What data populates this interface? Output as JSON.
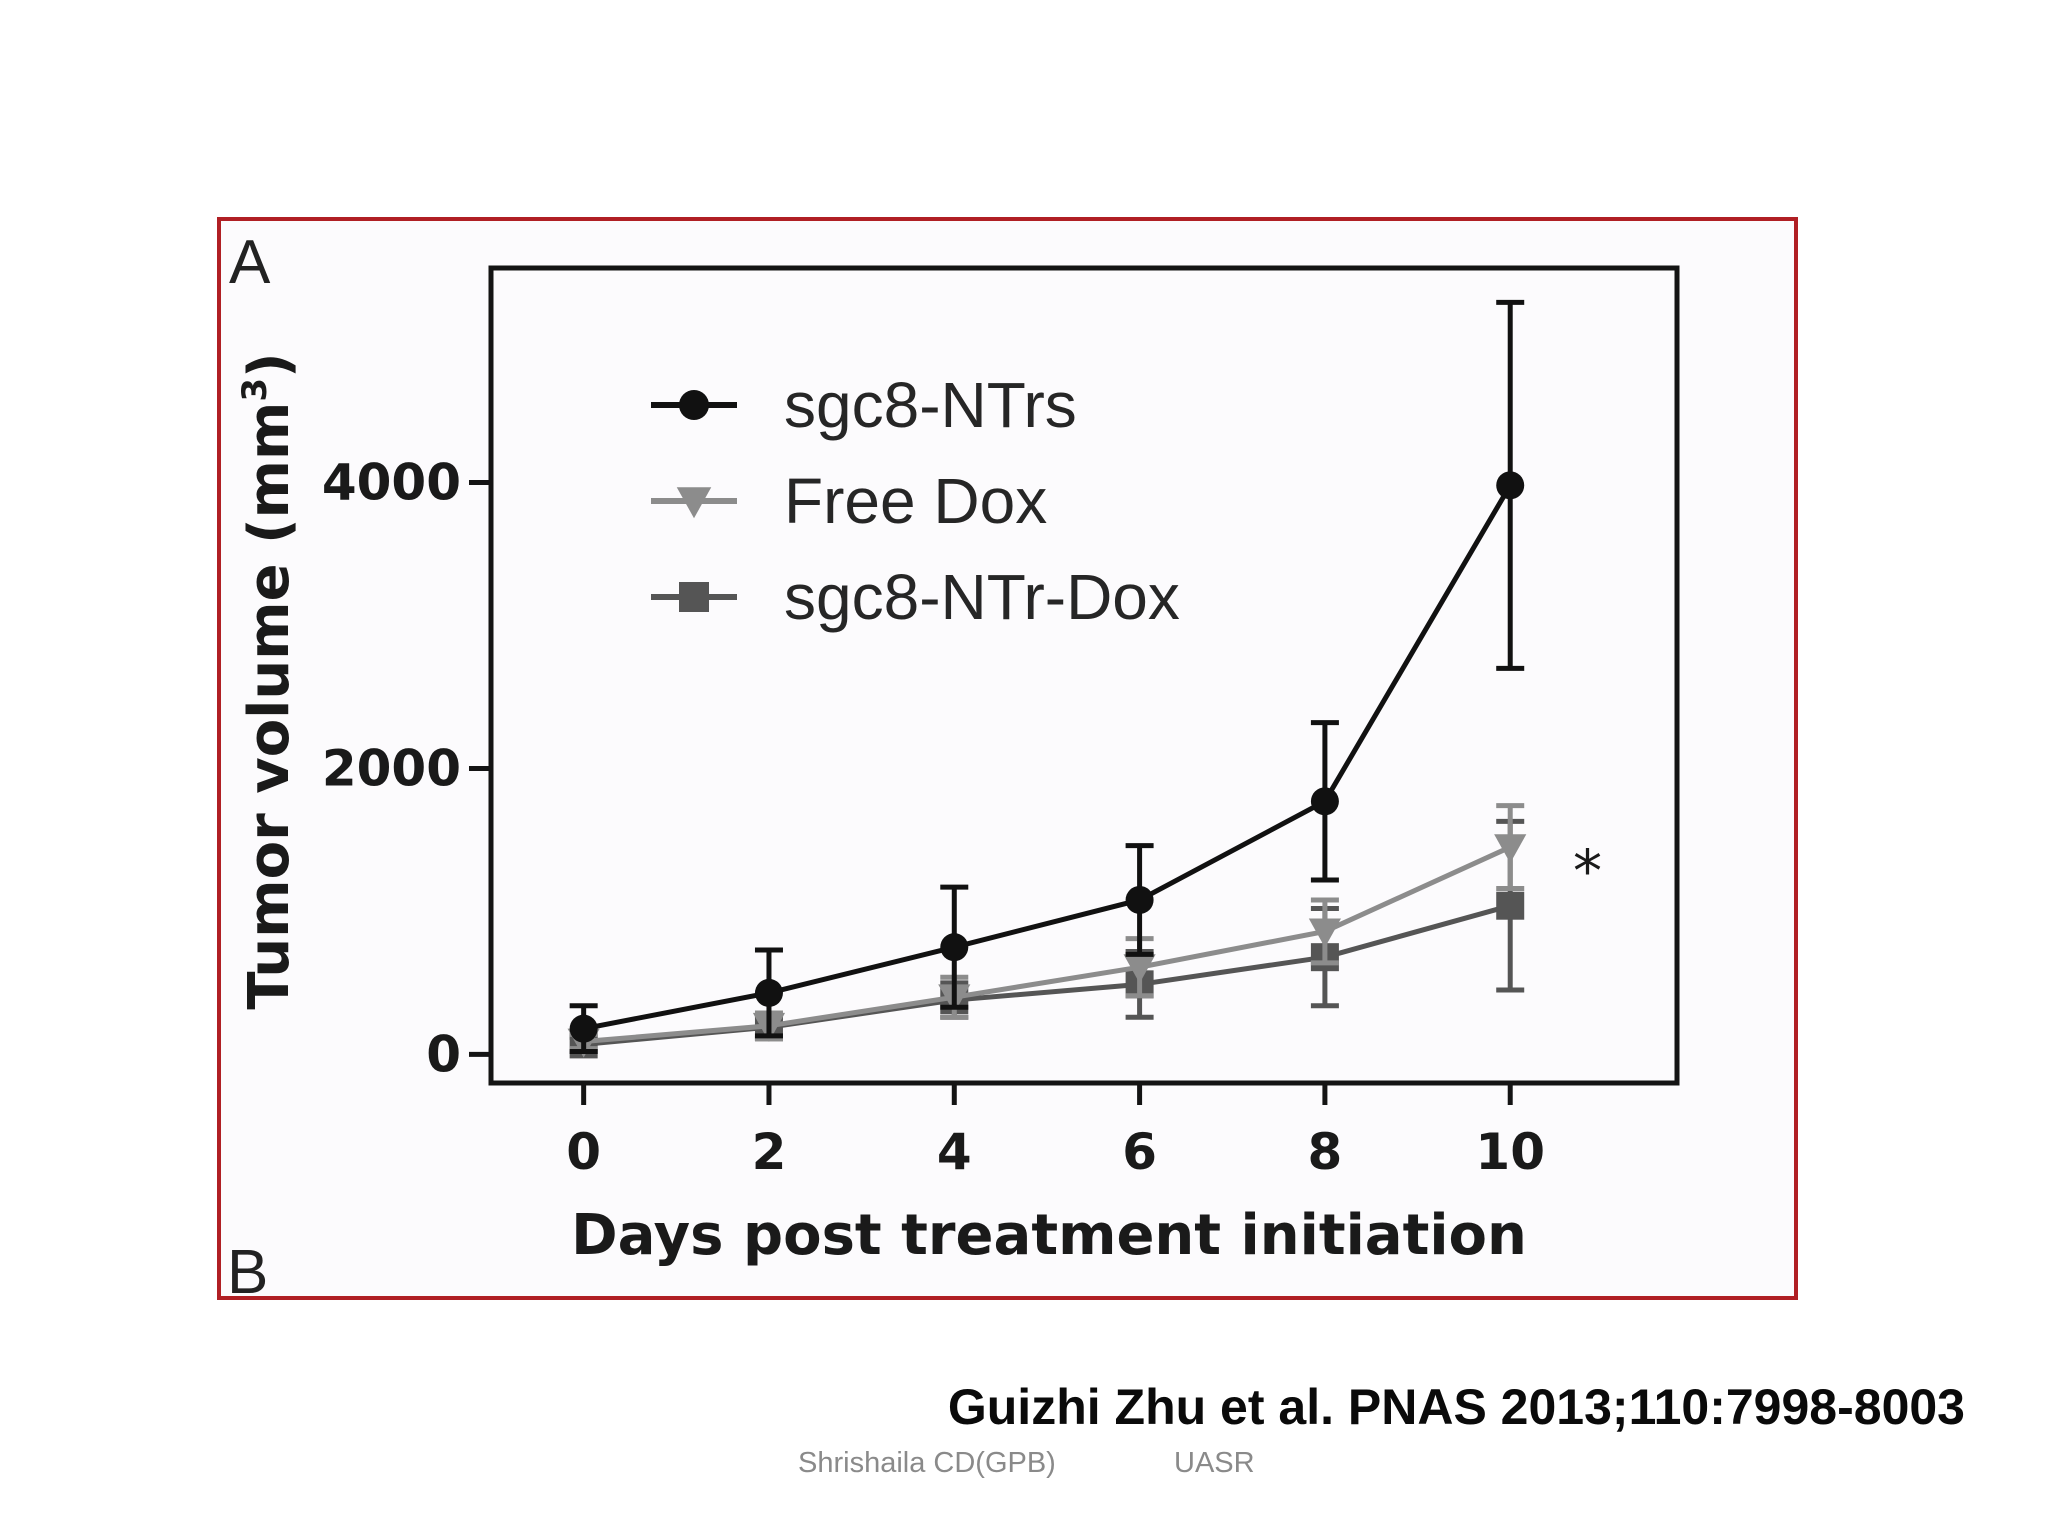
{
  "panel_labels": {
    "top": "A",
    "bottom": "B"
  },
  "chart_data": {
    "type": "line",
    "title": "",
    "xlabel": "Days post treatment initiation",
    "ylabel": "Tumor volume (mm",
    "ylabel_superscript": "3",
    "ylabel_close": ")",
    "x": [
      0,
      2,
      4,
      6,
      8,
      10
    ],
    "x_ticks": [
      "0",
      "2",
      "4",
      "6",
      "8",
      "10"
    ],
    "y_ticks": [
      "0",
      "2000",
      "4000"
    ],
    "y_tick_values": [
      0,
      2000,
      4000
    ],
    "xlim": [
      -1,
      11.8
    ],
    "ylim": [
      -200,
      5500
    ],
    "grid": false,
    "legend_position": "top-left",
    "series": [
      {
        "name": "sgc8-NTrs",
        "color": "#111111",
        "marker": "circle",
        "values": [
          180,
          430,
          750,
          1080,
          1770,
          3980
        ],
        "error": [
          160,
          300,
          420,
          380,
          550,
          1280
        ]
      },
      {
        "name": "Free Dox",
        "color": "#8c8c8c",
        "marker": "triangle-down",
        "values": [
          90,
          200,
          400,
          610,
          860,
          1450
        ],
        "error": [
          50,
          90,
          140,
          200,
          220,
          290
        ]
      },
      {
        "name": "sgc8-NTr-Dox",
        "color": "#555555",
        "marker": "square",
        "values": [
          70,
          190,
          380,
          490,
          680,
          1040
        ],
        "error": [
          50,
          80,
          120,
          230,
          340,
          590
        ]
      }
    ],
    "annotation": "*"
  },
  "citation": "Guizhi Zhu et al. PNAS 2013;110:7998-8003",
  "footer": {
    "author": "Shrishaila CD(GPB)",
    "org": "UASR"
  }
}
